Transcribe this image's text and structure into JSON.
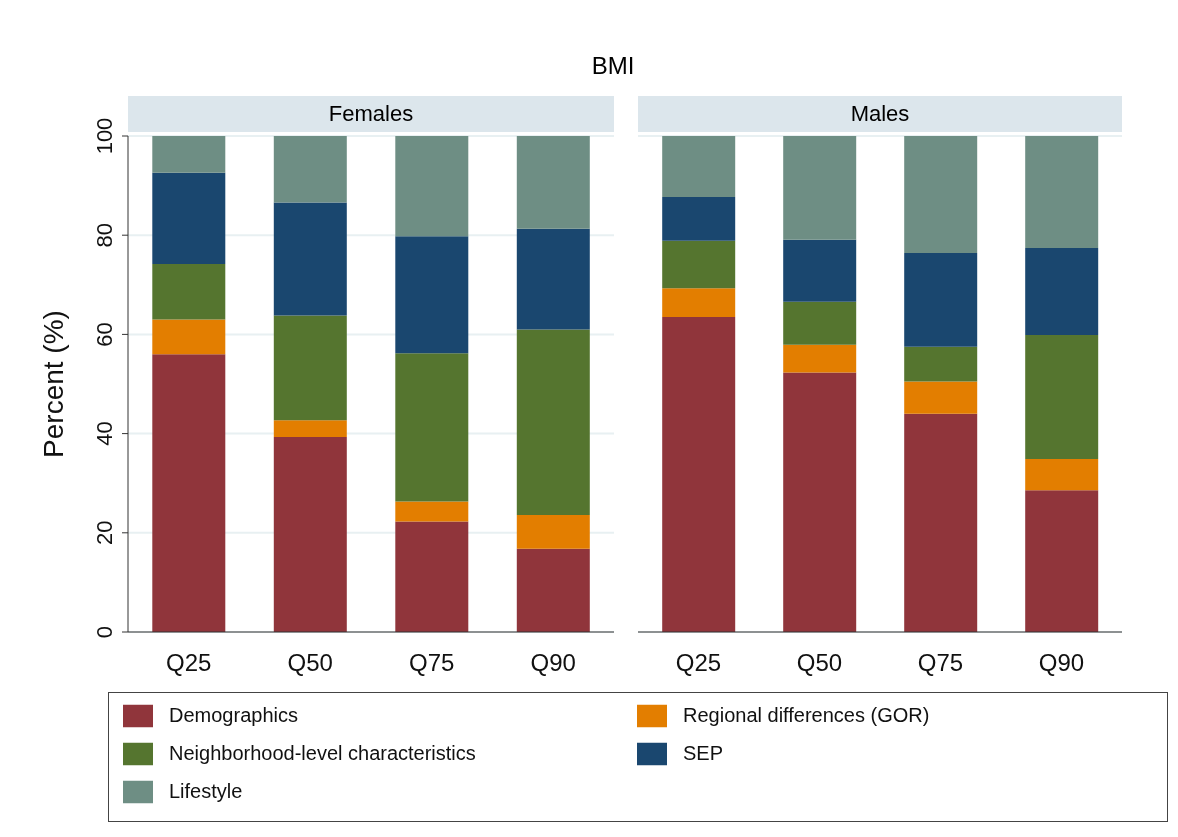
{
  "chart_data": [
    {
      "type": "bar",
      "title": "BMI",
      "subtitle": "Females",
      "ylabel": "Percent (%)",
      "categories": [
        "Q25",
        "Q50",
        "Q75",
        "Q90"
      ],
      "stacked": true,
      "ylim": [
        0,
        100
      ],
      "yticks": [
        0,
        20,
        40,
        60,
        80,
        100
      ],
      "grid": "y",
      "legend": "bottom",
      "series": [
        {
          "name": "Demographics",
          "color": "#90353b",
          "values": [
            56.0,
            39.3,
            22.3,
            16.8
          ]
        },
        {
          "name": "Regional differences (GOR)",
          "color": "#e37e00",
          "values": [
            7.0,
            3.4,
            4.0,
            6.8
          ]
        },
        {
          "name": "Neighborhood-level characteristics",
          "color": "#55752f",
          "values": [
            11.2,
            21.1,
            29.9,
            37.4
          ]
        },
        {
          "name": "SEP",
          "color": "#1a476f",
          "values": [
            18.4,
            22.8,
            23.6,
            20.3
          ]
        },
        {
          "name": "Lifestyle",
          "color": "#6e8e84",
          "values": [
            7.4,
            13.4,
            20.2,
            18.7
          ]
        }
      ]
    },
    {
      "type": "bar",
      "subtitle": "Males",
      "categories": [
        "Q25",
        "Q50",
        "Q75",
        "Q90"
      ],
      "stacked": true,
      "ylim": [
        0,
        100
      ],
      "yticks": [
        0,
        20,
        40,
        60,
        80,
        100
      ],
      "grid": "y",
      "tick_labels": "x",
      "series": [
        {
          "color": "#90353b",
          "values": [
            63.5,
            52.3,
            44.0,
            28.6
          ]
        },
        {
          "color": "#e37e00",
          "values": [
            5.8,
            5.6,
            6.5,
            6.3
          ]
        },
        {
          "color": "#55752f",
          "values": [
            9.6,
            8.7,
            7.0,
            25.0
          ]
        },
        {
          "color": "#1a476f",
          "values": [
            8.8,
            12.5,
            18.9,
            17.5
          ]
        },
        {
          "color": "#6e8e84",
          "values": [
            12.3,
            20.9,
            23.6,
            22.6
          ]
        }
      ]
    }
  ]
}
